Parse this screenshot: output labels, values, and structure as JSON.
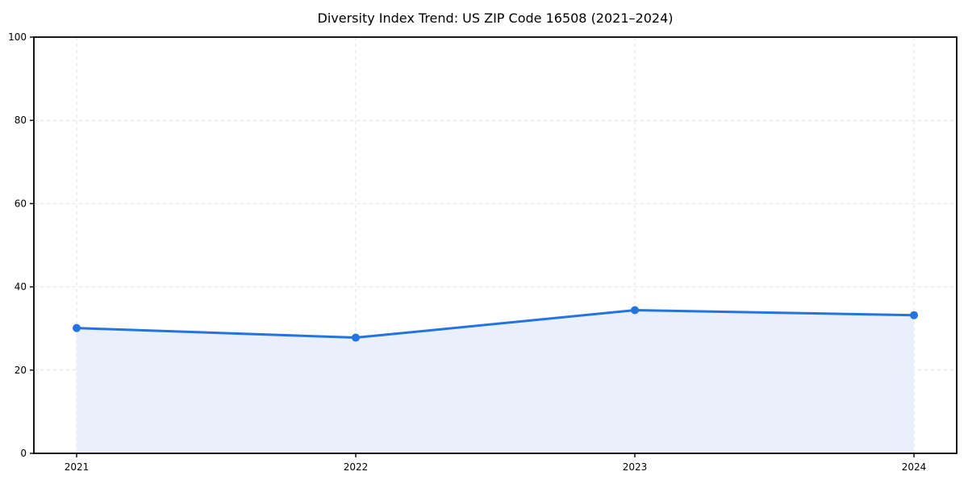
{
  "chart_data": {
    "type": "line",
    "title": "Diversity Index Trend: US ZIP Code 16508 (2021–2024)",
    "x": [
      2021,
      2022,
      2023,
      2024
    ],
    "x_tick_labels": [
      "2021",
      "2022",
      "2023",
      "2024"
    ],
    "series": [
      {
        "name": "Diversity Index",
        "values": [
          30.1,
          27.8,
          34.4,
          33.2
        ]
      }
    ],
    "xlabel": "",
    "ylabel": "",
    "ylim": [
      0,
      100
    ],
    "yticks": [
      0,
      20,
      40,
      60,
      80,
      100
    ],
    "grid": true,
    "grid_style": "dashed",
    "legend_position": "none",
    "area_fill": true,
    "marker": "circle",
    "colors": {
      "line": "#2373e1",
      "marker": "#2373e1",
      "area": "#e9f0fc",
      "grid": "#e2e2e2",
      "spine": "#000000",
      "text": "#000000",
      "background": "#ffffff"
    }
  }
}
